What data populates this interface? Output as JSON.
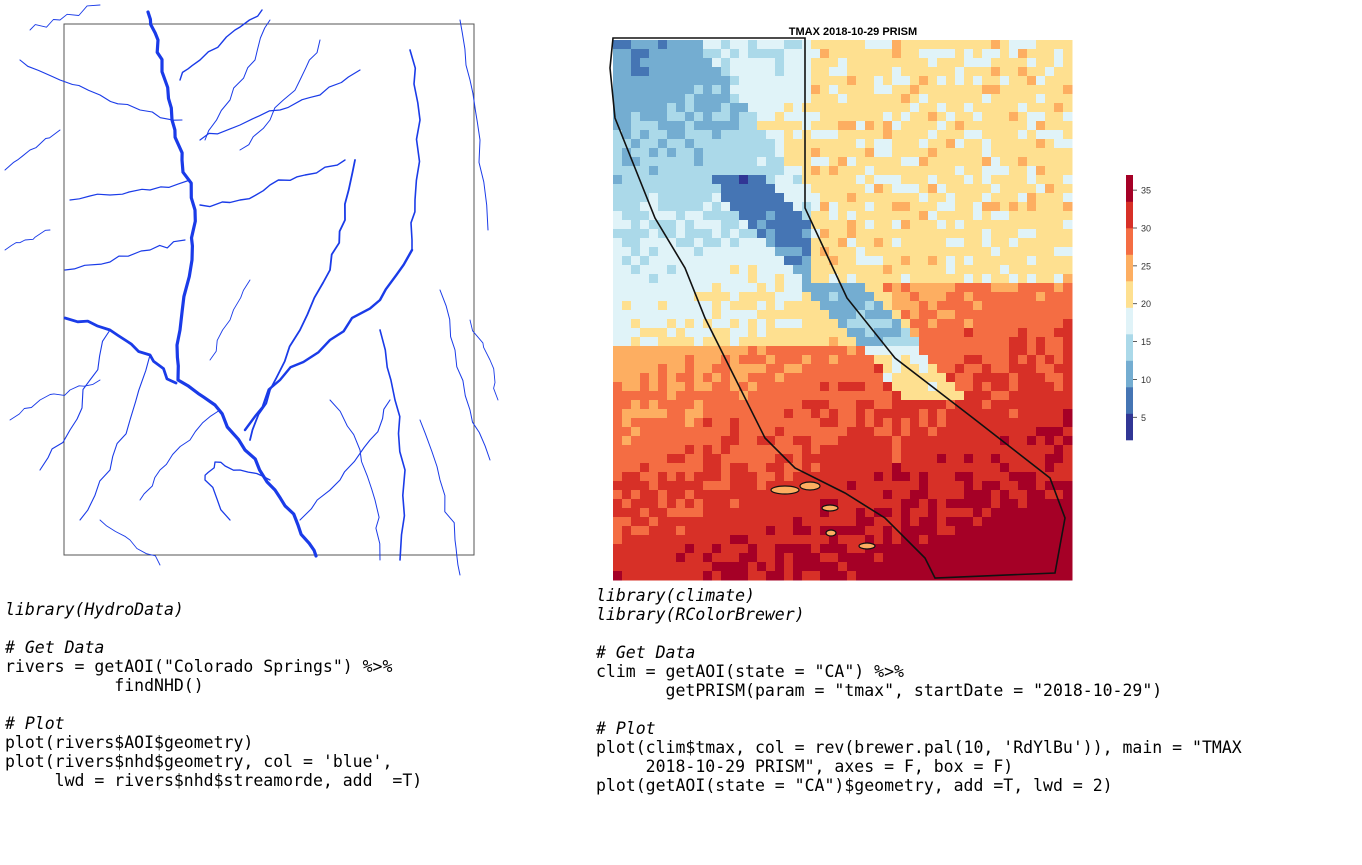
{
  "left_figure": {
    "line_color": "#1a3be8",
    "box_color": "#555555"
  },
  "right_figure": {
    "title": "TMAX 2018-10-29 PRISM",
    "palette": [
      "#313695",
      "#4575b4",
      "#74add1",
      "#abd9e9",
      "#e0f3f8",
      "#fee090",
      "#fdae61",
      "#f46d43",
      "#d73027",
      "#a50026"
    ],
    "legend": {
      "ticks": [
        "35",
        "30",
        "25",
        "20",
        "15",
        "10",
        "5"
      ],
      "range": [
        2,
        37
      ]
    }
  },
  "code_left": {
    "lines": [
      {
        "cls": "lib",
        "text": "library(HydroData)"
      },
      {
        "cls": "",
        "text": ""
      },
      {
        "cls": "cmt",
        "text": "# Get Data"
      },
      {
        "cls": "",
        "text": "rivers = getAOI(\"Colorado Springs\") %>%"
      },
      {
        "cls": "",
        "text": "           findNHD()"
      },
      {
        "cls": "",
        "text": ""
      },
      {
        "cls": "cmt",
        "text": "# Plot"
      },
      {
        "cls": "",
        "text": "plot(rivers$AOI$geometry)"
      },
      {
        "cls": "",
        "text": "plot(rivers$nhd$geometry, col = 'blue',"
      },
      {
        "cls": "",
        "text": "     lwd = rivers$nhd$streamorde, add  =T)"
      }
    ]
  },
  "code_right": {
    "lines": [
      {
        "cls": "lib",
        "text": "library(climate)"
      },
      {
        "cls": "lib",
        "text": "library(RColorBrewer)"
      },
      {
        "cls": "",
        "text": ""
      },
      {
        "cls": "cmt",
        "text": "# Get Data"
      },
      {
        "cls": "",
        "text": "clim = getAOI(state = \"CA\") %>%"
      },
      {
        "cls": "",
        "text": "       getPRISM(param = \"tmax\", startDate = \"2018-10-29\")"
      },
      {
        "cls": "",
        "text": ""
      },
      {
        "cls": "cmt",
        "text": "# Plot"
      },
      {
        "cls": "",
        "text": "plot(clim$tmax, col = rev(brewer.pal(10, 'RdYlBu')), main = \"TMAX"
      },
      {
        "cls": "",
        "text": "     2018-10-29 PRISM\", axes = F, box = F)"
      },
      {
        "cls": "",
        "text": "plot(getAOI(state = \"CA\")$geometry, add =T, lwd = 2)"
      }
    ]
  }
}
